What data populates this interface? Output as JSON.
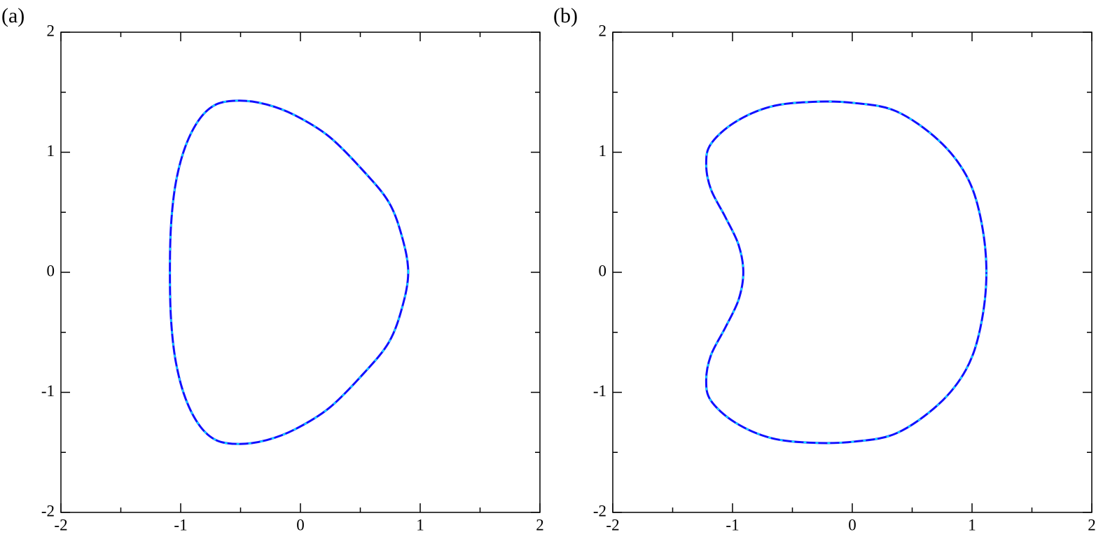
{
  "chart_data": [
    {
      "type": "line",
      "label": "(a)",
      "x": [
        0.9,
        0.85,
        0.74,
        0.53,
        0.24,
        -0.05,
        -0.29,
        -0.51,
        -0.7,
        -0.84,
        -0.96,
        -1.04,
        -1.08,
        -1.09,
        -1.08,
        -1.04,
        -0.96,
        -0.84,
        -0.7,
        -0.51,
        -0.29,
        -0.05,
        0.24,
        0.53,
        0.74,
        0.85
      ],
      "series": [
        {
          "color": "#1010ff",
          "values": [
            0,
            0.29,
            0.58,
            0.84,
            1.13,
            1.31,
            1.4,
            1.43,
            1.4,
            1.28,
            1.05,
            0.75,
            0.4,
            0,
            -0.4,
            -0.75,
            -1.05,
            -1.28,
            -1.4,
            -1.43,
            -1.4,
            -1.31,
            -1.13,
            -0.84,
            -0.58,
            -0.29
          ]
        },
        {
          "color": "#00e5ff",
          "dashed": true,
          "values": [
            0,
            0.29,
            0.58,
            0.84,
            1.13,
            1.31,
            1.4,
            1.43,
            1.4,
            1.28,
            1.05,
            0.75,
            0.4,
            0,
            -0.4,
            -0.75,
            -1.05,
            -1.28,
            -1.4,
            -1.43,
            -1.4,
            -1.31,
            -1.13,
            -0.84,
            -0.58,
            -0.29
          ]
        }
      ],
      "xlim": [
        -2,
        2
      ],
      "ylim": [
        -2,
        2
      ],
      "xticks": [
        -2,
        -1,
        0,
        1,
        2
      ],
      "yticks": [
        -2,
        -1,
        0,
        1,
        2
      ],
      "xminorticks": [
        -1.5,
        -0.5,
        0.5,
        1.5
      ],
      "yminorticks": [
        -1.5,
        -0.5,
        0.5,
        1.5
      ]
    },
    {
      "type": "line",
      "label": "(b)",
      "x": [
        1.12,
        1.07,
        0.95,
        0.72,
        0.37,
        0.02,
        -0.33,
        -0.68,
        -0.98,
        -1.18,
        -1.22,
        -1.18,
        -1.06,
        -0.95,
        -0.91,
        -0.95,
        -1.06,
        -1.18,
        -1.22,
        -1.18,
        -0.98,
        -0.68,
        -0.33,
        0.02,
        0.37,
        0.72,
        0.95,
        1.07
      ],
      "series": [
        {
          "color": "#1010ff",
          "values": [
            0,
            0.46,
            0.81,
            1.1,
            1.34,
            1.41,
            1.42,
            1.38,
            1.25,
            1.07,
            0.9,
            0.69,
            0.46,
            0.23,
            0,
            -0.23,
            -0.46,
            -0.69,
            -0.9,
            -1.07,
            -1.25,
            -1.38,
            -1.42,
            -1.41,
            -1.34,
            -1.1,
            -0.81,
            -0.46
          ]
        },
        {
          "color": "#00e5ff",
          "dashed": true,
          "values": [
            0,
            0.46,
            0.81,
            1.1,
            1.34,
            1.41,
            1.42,
            1.38,
            1.25,
            1.07,
            0.9,
            0.69,
            0.46,
            0.23,
            0,
            -0.23,
            -0.46,
            -0.69,
            -0.9,
            -1.07,
            -1.25,
            -1.38,
            -1.42,
            -1.41,
            -1.34,
            -1.1,
            -0.81,
            -0.46
          ]
        }
      ],
      "xlim": [
        -2,
        2
      ],
      "ylim": [
        -2,
        2
      ],
      "xticks": [
        -2,
        -1,
        0,
        1,
        2
      ],
      "yticks": [
        -2,
        -1,
        0,
        1,
        2
      ],
      "xminorticks": [
        -1.5,
        -0.5,
        0.5,
        1.5
      ],
      "yminorticks": [
        -1.5,
        -0.5,
        0.5,
        1.5
      ]
    }
  ]
}
